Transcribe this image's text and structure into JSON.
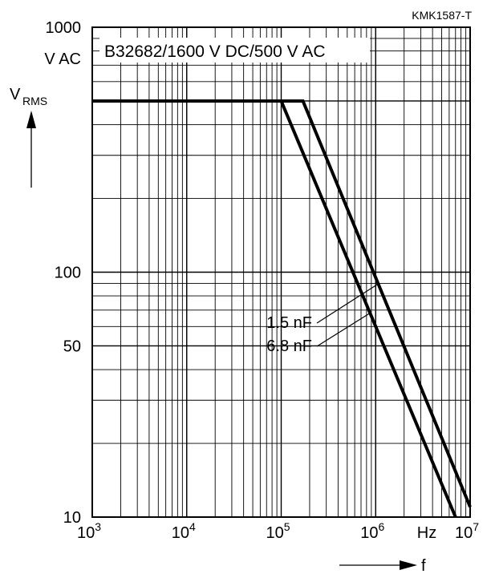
{
  "chart_data": {
    "type": "line",
    "reference": "KMK1587-T",
    "title": "B32682/1600 V DC/500 V AC",
    "x_scale": "log",
    "y_scale": "log",
    "xlim": [
      1000,
      10000000
    ],
    "ylim": [
      10,
      1000
    ],
    "x_tick_labels": [
      {
        "base": "10",
        "exp": "3"
      },
      {
        "base": "10",
        "exp": "4"
      },
      {
        "base": "10",
        "exp": "5"
      },
      {
        "base": "10",
        "exp": "6"
      },
      {
        "base": "10",
        "exp": "7"
      }
    ],
    "y_tick_labels": [
      "1000",
      "100",
      "50",
      "10"
    ],
    "y_tick_values": [
      1000,
      100,
      50,
      10
    ],
    "y_unit": "V AC",
    "x_unit": "Hz",
    "ylabel": {
      "main": "V",
      "sub": "RMS"
    },
    "xlabel": "f",
    "grid": true,
    "series": [
      {
        "name": "1.5 nF",
        "x": [
          1000,
          170000,
          10000000
        ],
        "y": [
          500,
          500,
          11
        ]
      },
      {
        "name": "6.8 nF",
        "x": [
          1000,
          100000,
          7000000
        ],
        "y": [
          500,
          500,
          10
        ]
      }
    ],
    "series_labels": [
      "1.5 nF",
      "6.8 nF"
    ],
    "colors": {
      "line": "#000000",
      "grid": "#000000",
      "background": "#ffffff"
    }
  }
}
